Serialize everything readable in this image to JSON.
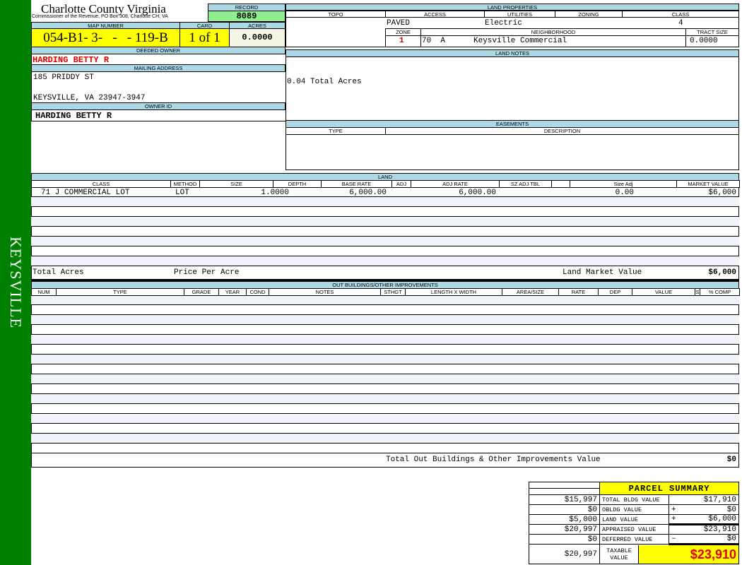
{
  "sidebar": {
    "label": "KEYSVILLE",
    "color": "#008000"
  },
  "header": {
    "title": "Charlotte County Virginia",
    "subtitle": "Commissioner of the Revenue, PO Box 308, Charlotte CH, VA",
    "record_label": "RECORD",
    "record": "8089"
  },
  "parcel": {
    "map_label": "MAP NUMBER",
    "map": "054-B1- 3-   -   - 119-B",
    "card_label": "CARD",
    "card": "1 of 1",
    "acres_label": "ACRES",
    "acres": "0.0000"
  },
  "owner": {
    "deeded_label": "DEEDED OWNER",
    "deeded": "HARDING BETTY R",
    "mailing_label": "MAILING ADDRESS",
    "address1": "185 PRIDDY ST",
    "address2": "KEYSVILLE, VA 23947-3947",
    "owner_id_label": "OWNER ID",
    "owner_id": "HARDING BETTY R"
  },
  "land_properties": {
    "title": "LAND PROPERTIES",
    "topo_label": "TOPO",
    "access_label": "ACCESS",
    "utilities_label": "UTILITIES",
    "zoning_label": "ZONING",
    "class_label": "CLASS",
    "access": "PAVED",
    "utilities": "Electric",
    "class": "4",
    "zone_label": "ZONE",
    "neighborhood_label": "NEIGHBORHOOD",
    "tract_label": "TRACT SIZE",
    "zone": "1",
    "neighborhood_code": "70  A",
    "neighborhood": "Keysville Commercial",
    "tract": "0.0000"
  },
  "land_notes": {
    "title": "LAND NOTES",
    "text": "0.04 Total Acres"
  },
  "easements": {
    "title": "EASEMENTS",
    "type_label": "TYPE",
    "desc_label": "DESCRIPTION"
  },
  "land": {
    "title": "LAND",
    "columns": [
      "CLASS",
      "METHOD",
      "SIZE",
      "DEPTH",
      "BASE RATE",
      "ADJ",
      "ADJ RATE",
      "SZ ADJ TBL",
      "",
      "Size Adj",
      "MARKET VALUE"
    ],
    "row": {
      "class": "71 J COMMERCIAL LOT",
      "method": "LOT",
      "size": "1.0000",
      "base_rate": "6,000.00",
      "adj_rate": "6,000.00",
      "size_adj": "0.00",
      "market": "$6,000"
    },
    "total_acres_label": "Total Acres",
    "ppa_label": "Price Per Acre",
    "lmv_label": "Land Market Value",
    "lmv": "$6,000"
  },
  "outbuildings": {
    "title": "OUT BUILDINGS/OTHER IMPROVEMENTS",
    "columns": [
      "NUM",
      "TYPE",
      "GRADE",
      "YEAR",
      "COND",
      "NOTES",
      "STHGT",
      "LENGTH X WIDTH",
      "AREA/SIZE",
      "RATE",
      "DEP",
      "VALUE",
      "S",
      "% COMP"
    ],
    "total_label": "Total Out Buildings & Other Improvements Value",
    "total": "$0"
  },
  "summary": {
    "title": "PARCEL SUMMARY",
    "rows": [
      {
        "prev": "$15,997",
        "label": "TOTAL BLDG VALUE",
        "op": "",
        "value": "$17,910"
      },
      {
        "prev": "$0",
        "label": "OBLDG VALUE",
        "op": "+",
        "value": "$0"
      },
      {
        "prev": "$5,000",
        "label": "LAND VALUE",
        "op": "+",
        "value": "$6,000"
      },
      {
        "prev": "$20,997",
        "label": "APPRAISED VALUE",
        "op": "",
        "value": "$23,910"
      },
      {
        "prev": "$0",
        "label": "DEFERRED VALUE",
        "op": "–",
        "value": "$0"
      }
    ],
    "taxable_prev": "$20,997",
    "taxable_label": "TAXABLE VALUE",
    "taxable": "$23,910"
  }
}
